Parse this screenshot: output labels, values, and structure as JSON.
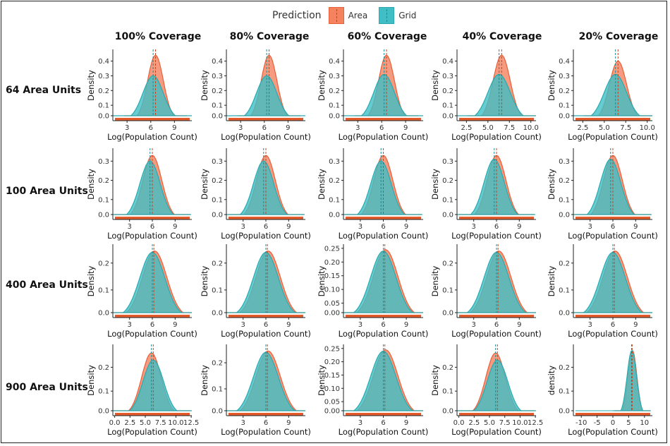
{
  "legend": {
    "title": "Prediction",
    "items": [
      "Area",
      "Grid"
    ]
  },
  "colors": {
    "area_fill": "#f4825f",
    "area_line": "#e8603a",
    "grid_fill": "#3fbfc5",
    "grid_line": "#2aa9b0",
    "overlap": "#6a9e8e",
    "rug": "#e35a2b"
  },
  "columns": [
    "100% Coverage",
    "80% Coverage",
    "60% Coverage",
    "40% Coverage",
    "20% Coverage"
  ],
  "rows": [
    "64 Area Units",
    "100 Area Units",
    "400 Area Units",
    "900 Area Units"
  ],
  "chart_data": {
    "type": "area",
    "description": "Density of Log(Population Count) for Area vs Grid predictions by coverage and number of area units",
    "xlabel": "Log(Population Count)",
    "panels": [
      [
        {
          "ylabel": "Density",
          "xlim": [
            1.2,
            11.2
          ],
          "xticks": [
            "3",
            "6",
            "9"
          ],
          "xtv": [
            3,
            6,
            9
          ],
          "ylim": [
            0,
            0.47
          ],
          "yticks": [
            "0.0",
            "0.1",
            "0.2",
            "0.3",
            "0.4"
          ],
          "ytv": [
            0,
            0.1,
            0.2,
            0.3,
            0.4
          ],
          "area": {
            "mean": 6.6,
            "sd": 1.0,
            "peak": 0.44
          },
          "grid": {
            "mean": 6.3,
            "sd": 1.3,
            "peak": 0.3
          },
          "vlines": [
            6.3,
            6.6
          ]
        },
        {
          "ylabel": "Density",
          "xlim": [
            1.2,
            11.2
          ],
          "xticks": [
            "3",
            "6",
            "9"
          ],
          "xtv": [
            3,
            6,
            9
          ],
          "ylim": [
            0,
            0.47
          ],
          "yticks": [
            "0.0",
            "0.1",
            "0.2",
            "0.3",
            "0.4"
          ],
          "ytv": [
            0,
            0.1,
            0.2,
            0.3,
            0.4
          ],
          "area": {
            "mean": 6.6,
            "sd": 1.0,
            "peak": 0.44
          },
          "grid": {
            "mean": 6.3,
            "sd": 1.3,
            "peak": 0.3
          },
          "vlines": [
            6.3,
            6.6
          ]
        },
        {
          "ylabel": "Density",
          "xlim": [
            1.2,
            11.2
          ],
          "xticks": [
            "3",
            "6",
            "9"
          ],
          "xtv": [
            3,
            6,
            9
          ],
          "ylim": [
            0,
            0.47
          ],
          "yticks": [
            "0.0",
            "0.1",
            "0.2",
            "0.3",
            "0.4"
          ],
          "ytv": [
            0,
            0.1,
            0.2,
            0.3,
            0.4
          ],
          "area": {
            "mean": 6.6,
            "sd": 1.0,
            "peak": 0.44
          },
          "grid": {
            "mean": 6.3,
            "sd": 1.3,
            "peak": 0.31
          },
          "vlines": [
            6.3,
            6.6
          ]
        },
        {
          "ylabel": "Density",
          "xlim": [
            1.4,
            10.6
          ],
          "xticks": [
            "2.5",
            "5.0",
            "7.5",
            "10.0"
          ],
          "xtv": [
            2.5,
            5,
            7.5,
            10
          ],
          "ylim": [
            0,
            0.47
          ],
          "yticks": [
            "0.0",
            "0.1",
            "0.2",
            "0.3",
            "0.4"
          ],
          "ytv": [
            0,
            0.1,
            0.2,
            0.3,
            0.4
          ],
          "area": {
            "mean": 6.6,
            "sd": 1.0,
            "peak": 0.44
          },
          "grid": {
            "mean": 6.3,
            "sd": 1.3,
            "peak": 0.31
          },
          "vlines": [
            6.3,
            6.6
          ]
        },
        {
          "ylabel": "Density",
          "xlim": [
            1.4,
            10.6
          ],
          "xticks": [
            "2.5",
            "5.0",
            "7.5",
            "10.0"
          ],
          "xtv": [
            2.5,
            5,
            7.5,
            10
          ],
          "ylim": [
            0,
            0.47
          ],
          "yticks": [
            "0.0",
            "0.1",
            "0.2",
            "0.3",
            "0.4"
          ],
          "ytv": [
            0,
            0.1,
            0.2,
            0.3,
            0.4
          ],
          "area": {
            "mean": 6.6,
            "sd": 1.0,
            "peak": 0.4
          },
          "grid": {
            "mean": 6.3,
            "sd": 1.3,
            "peak": 0.31
          },
          "vlines": [
            6.3,
            6.6
          ]
        }
      ],
      [
        {
          "ylabel": "Density",
          "xlim": [
            0.8,
            11.2
          ],
          "xticks": [
            "3",
            "6",
            "9"
          ],
          "xtv": [
            3,
            6,
            9
          ],
          "ylim": [
            0,
            0.36
          ],
          "yticks": [
            "0.0",
            "0.1",
            "0.2",
            "0.3"
          ],
          "ytv": [
            0,
            0.1,
            0.2,
            0.3
          ],
          "area": {
            "mean": 6.0,
            "sd": 1.25,
            "peak": 0.33
          },
          "grid": {
            "mean": 5.7,
            "sd": 1.35,
            "peak": 0.3
          },
          "vlines": [
            5.7,
            6.0
          ]
        },
        {
          "ylabel": "Density",
          "xlim": [
            0.8,
            11.2
          ],
          "xticks": [
            "3",
            "6",
            "9"
          ],
          "xtv": [
            3,
            6,
            9
          ],
          "ylim": [
            0,
            0.36
          ],
          "yticks": [
            "0.0",
            "0.1",
            "0.2",
            "0.3"
          ],
          "ytv": [
            0,
            0.1,
            0.2,
            0.3
          ],
          "area": {
            "mean": 6.0,
            "sd": 1.25,
            "peak": 0.33
          },
          "grid": {
            "mean": 5.7,
            "sd": 1.35,
            "peak": 0.3
          },
          "vlines": [
            5.7,
            6.0
          ]
        },
        {
          "ylabel": "Density",
          "xlim": [
            0.8,
            11.2
          ],
          "xticks": [
            "3",
            "6",
            "9"
          ],
          "xtv": [
            3,
            6,
            9
          ],
          "ylim": [
            0,
            0.36
          ],
          "yticks": [
            "0.0",
            "0.1",
            "0.2",
            "0.3"
          ],
          "ytv": [
            0,
            0.1,
            0.2,
            0.3
          ],
          "area": {
            "mean": 6.0,
            "sd": 1.25,
            "peak": 0.33
          },
          "grid": {
            "mean": 5.7,
            "sd": 1.35,
            "peak": 0.3
          },
          "vlines": [
            5.7,
            6.0
          ]
        },
        {
          "ylabel": "Density",
          "xlim": [
            0.8,
            11.2
          ],
          "xticks": [
            "3",
            "6",
            "9"
          ],
          "xtv": [
            3,
            6,
            9
          ],
          "ylim": [
            0,
            0.36
          ],
          "yticks": [
            "0.0",
            "0.1",
            "0.2",
            "0.3"
          ],
          "ytv": [
            0,
            0.1,
            0.2,
            0.3
          ],
          "area": {
            "mean": 6.0,
            "sd": 1.25,
            "peak": 0.33
          },
          "grid": {
            "mean": 5.7,
            "sd": 1.35,
            "peak": 0.31
          },
          "vlines": [
            5.7,
            6.0
          ]
        },
        {
          "ylabel": "Density",
          "xlim": [
            0.8,
            11.2
          ],
          "xticks": [
            "3",
            "6",
            "9"
          ],
          "xtv": [
            3,
            6,
            9
          ],
          "ylim": [
            0,
            0.36
          ],
          "yticks": [
            "0.0",
            "0.1",
            "0.2",
            "0.3"
          ],
          "ytv": [
            0,
            0.1,
            0.2,
            0.3
          ],
          "area": {
            "mean": 6.0,
            "sd": 1.25,
            "peak": 0.33
          },
          "grid": {
            "mean": 5.7,
            "sd": 1.35,
            "peak": 0.31
          },
          "vlines": [
            5.7,
            6.0
          ]
        }
      ],
      [
        {
          "ylabel": "Density",
          "xlim": [
            0.8,
            11.2
          ],
          "xticks": [
            "3",
            "6",
            "9"
          ],
          "xtv": [
            3,
            6,
            9
          ],
          "ylim": [
            0,
            0.265
          ],
          "yticks": [
            "0.0",
            "0.1",
            "0.2"
          ],
          "ytv": [
            0,
            0.1,
            0.2
          ],
          "area": {
            "mean": 6.3,
            "sd": 1.6,
            "peak": 0.245
          },
          "grid": {
            "mean": 6.0,
            "sd": 1.65,
            "peak": 0.24
          },
          "vlines": [
            6.0,
            6.2
          ]
        },
        {
          "ylabel": "Density",
          "xlim": [
            0.8,
            11.2
          ],
          "xticks": [
            "3",
            "6",
            "9"
          ],
          "xtv": [
            3,
            6,
            9
          ],
          "ylim": [
            0,
            0.265
          ],
          "yticks": [
            "0.0",
            "0.1",
            "0.2"
          ],
          "ytv": [
            0,
            0.1,
            0.2
          ],
          "area": {
            "mean": 6.3,
            "sd": 1.6,
            "peak": 0.245
          },
          "grid": {
            "mean": 6.0,
            "sd": 1.65,
            "peak": 0.24
          },
          "vlines": [
            6.0,
            6.2
          ]
        },
        {
          "ylabel": "Density",
          "xlim": [
            0.8,
            11.2
          ],
          "xticks": [
            "3",
            "6",
            "9"
          ],
          "xtv": [
            3,
            6,
            9
          ],
          "ylim": [
            0,
            0.26
          ],
          "yticks": [
            "0.00",
            "0.05",
            "0.10",
            "0.15",
            "0.20",
            "0.25"
          ],
          "ytv": [
            0,
            0.05,
            0.1,
            0.15,
            0.2,
            0.25
          ],
          "area": {
            "mean": 6.3,
            "sd": 1.6,
            "peak": 0.245
          },
          "grid": {
            "mean": 6.0,
            "sd": 1.65,
            "peak": 0.24
          },
          "vlines": [
            6.0,
            6.2
          ]
        },
        {
          "ylabel": "Density",
          "xlim": [
            0.8,
            11.2
          ],
          "xticks": [
            "3",
            "6",
            "9"
          ],
          "xtv": [
            3,
            6,
            9
          ],
          "ylim": [
            0,
            0.265
          ],
          "yticks": [
            "0.0",
            "0.1",
            "0.2"
          ],
          "ytv": [
            0,
            0.1,
            0.2
          ],
          "area": {
            "mean": 6.3,
            "sd": 1.6,
            "peak": 0.245
          },
          "grid": {
            "mean": 6.0,
            "sd": 1.65,
            "peak": 0.24
          },
          "vlines": [
            6.0,
            6.2
          ]
        },
        {
          "ylabel": "Density",
          "xlim": [
            0.8,
            11.2
          ],
          "xticks": [
            "3",
            "6",
            "9"
          ],
          "xtv": [
            3,
            6,
            9
          ],
          "ylim": [
            0,
            0.265
          ],
          "yticks": [
            "0.0",
            "0.1",
            "0.2"
          ],
          "ytv": [
            0,
            0.1,
            0.2
          ],
          "area": {
            "mean": 6.3,
            "sd": 1.6,
            "peak": 0.245
          },
          "grid": {
            "mean": 6.0,
            "sd": 1.65,
            "peak": 0.24
          },
          "vlines": [
            6.0,
            6.2
          ]
        }
      ],
      [
        {
          "ylabel": "Density",
          "xlim": [
            -0.3,
            12.6
          ],
          "xticks": [
            "0.0",
            "2.5",
            "5.0",
            "7.5",
            "10.0",
            "12.5"
          ],
          "xtv": [
            0,
            2.5,
            5,
            7.5,
            10,
            12.5
          ],
          "ylim": [
            0,
            0.29
          ],
          "yticks": [
            "0.0",
            "0.1",
            "0.2"
          ],
          "ytv": [
            0,
            0.1,
            0.2
          ],
          "area": {
            "mean": 6.0,
            "sd": 1.6,
            "peak": 0.26
          },
          "grid": {
            "mean": 6.3,
            "sd": 1.7,
            "peak": 0.23
          },
          "vlines": [
            6.0,
            6.3
          ]
        },
        {
          "ylabel": "Density",
          "xlim": [
            0.8,
            11.2
          ],
          "xticks": [
            "3",
            "6",
            "9"
          ],
          "xtv": [
            3,
            6,
            9
          ],
          "ylim": [
            0,
            0.265
          ],
          "yticks": [
            "0.0",
            "0.1",
            "0.2"
          ],
          "ytv": [
            0,
            0.1,
            0.2
          ],
          "area": {
            "mean": 6.3,
            "sd": 1.6,
            "peak": 0.245
          },
          "grid": {
            "mean": 6.0,
            "sd": 1.65,
            "peak": 0.24
          },
          "vlines": [
            6.0,
            6.2
          ]
        },
        {
          "ylabel": "Density",
          "xlim": [
            0.8,
            11.2
          ],
          "xticks": [
            "3",
            "6",
            "9"
          ],
          "xtv": [
            3,
            6,
            9
          ],
          "ylim": [
            0,
            0.26
          ],
          "yticks": [
            "0.00",
            "0.05",
            "0.10",
            "0.15",
            "0.20",
            "0.25"
          ],
          "ytv": [
            0,
            0.05,
            0.1,
            0.15,
            0.2,
            0.25
          ],
          "area": {
            "mean": 6.3,
            "sd": 1.6,
            "peak": 0.245
          },
          "grid": {
            "mean": 6.0,
            "sd": 1.65,
            "peak": 0.24
          },
          "vlines": [
            6.0,
            6.2
          ]
        },
        {
          "ylabel": "Density",
          "xlim": [
            -0.3,
            12.6
          ],
          "xticks": [
            "0.0",
            "2.5",
            "5.0",
            "7.5",
            "10.0",
            "12.5"
          ],
          "xtv": [
            0,
            2.5,
            5,
            7.5,
            10,
            12.5
          ],
          "ylim": [
            0,
            0.29
          ],
          "yticks": [
            "0.0",
            "0.1",
            "0.2"
          ],
          "ytv": [
            0,
            0.1,
            0.2
          ],
          "area": {
            "mean": 6.0,
            "sd": 1.6,
            "peak": 0.26
          },
          "grid": {
            "mean": 6.3,
            "sd": 1.7,
            "peak": 0.23
          },
          "vlines": [
            6.0,
            6.3
          ]
        },
        {
          "ylabel": "density",
          "xlim": [
            -12.5,
            12.5
          ],
          "xticks": [
            "-10",
            "-5",
            "0",
            "5",
            "10"
          ],
          "xtv": [
            -10,
            -5,
            0,
            5,
            10
          ],
          "ylim": [
            0,
            0.29
          ],
          "yticks": [
            "0.0",
            "0.1",
            "0.2"
          ],
          "ytv": [
            0,
            0.1,
            0.2
          ],
          "area": {
            "mean": 6.2,
            "sd": 1.4,
            "peak": 0.27
          },
          "grid": {
            "mean": 6.0,
            "sd": 1.5,
            "peak": 0.27
          },
          "vlines": [
            5.9,
            6.1
          ]
        }
      ]
    ]
  }
}
